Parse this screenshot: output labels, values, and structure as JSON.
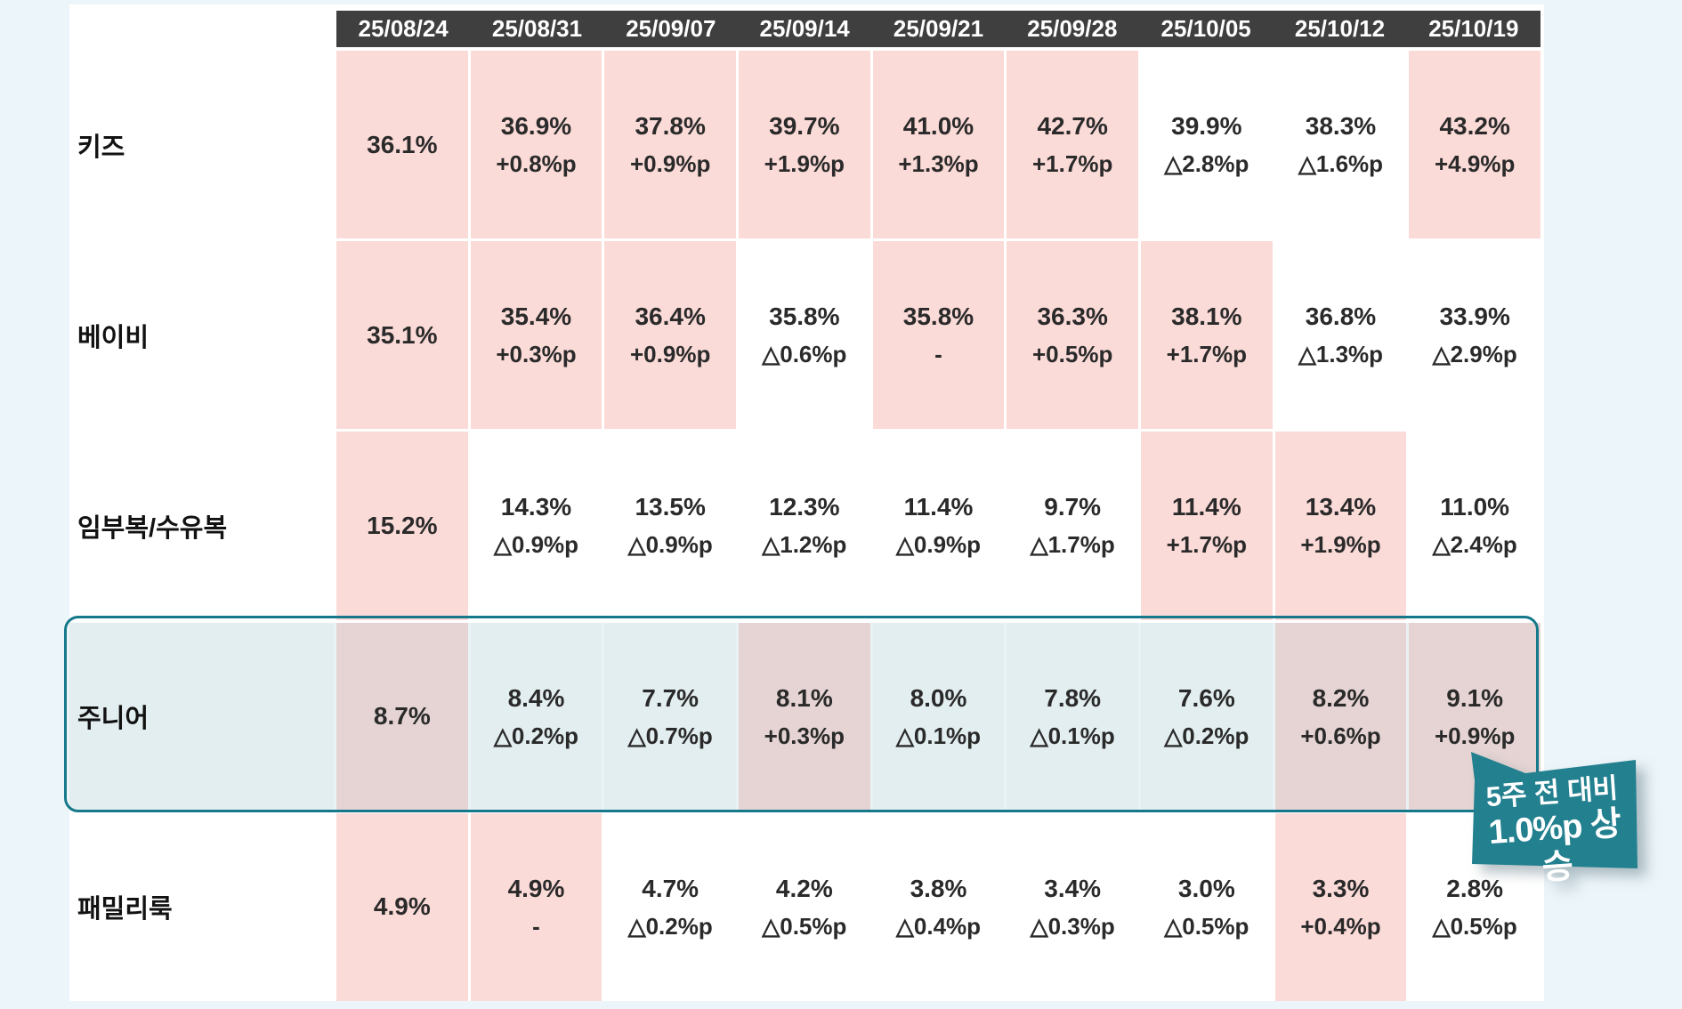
{
  "colors": {
    "page_bg": "#ECF5F9",
    "sheet_bg": "#FFFFFF",
    "header_bg": "#3F3F3F",
    "header_text": "#FFFFFF",
    "cell_pink": "#FBDBD8",
    "junior_blue": "#E3EEF0",
    "junior_mauve": "#E5D4D3",
    "box_border": "#15798B",
    "callout_bg": "#22808F",
    "text": "#2A2A2A"
  },
  "chart_data": {
    "type": "table",
    "columns": [
      "25/08/24",
      "25/08/31",
      "25/09/07",
      "25/09/14",
      "25/09/21",
      "25/09/28",
      "25/10/05",
      "25/10/12",
      "25/10/19"
    ],
    "value_unit": "%",
    "change_unit": "%p",
    "decrease_marker": "△",
    "rows": [
      {
        "label": "키즈",
        "values": [
          "36.1%",
          "36.9%",
          "37.8%",
          "39.7%",
          "41.0%",
          "42.7%",
          "39.9%",
          "38.3%",
          "43.2%"
        ],
        "changes": [
          "",
          "+0.8%p",
          "+0.9%p",
          "+1.9%p",
          "+1.3%p",
          "+1.7%p",
          "△2.8%p",
          "△1.6%p",
          "+4.9%p"
        ],
        "highlight": [
          1,
          1,
          1,
          1,
          1,
          1,
          0,
          0,
          1
        ],
        "emphasized": false
      },
      {
        "label": "베이비",
        "values": [
          "35.1%",
          "35.4%",
          "36.4%",
          "35.8%",
          "35.8%",
          "36.3%",
          "38.1%",
          "36.8%",
          "33.9%"
        ],
        "changes": [
          "",
          "+0.3%p",
          "+0.9%p",
          "△0.6%p",
          "-",
          "+0.5%p",
          "+1.7%p",
          "△1.3%p",
          "△2.9%p"
        ],
        "highlight": [
          1,
          1,
          1,
          0,
          1,
          1,
          1,
          0,
          0
        ],
        "emphasized": false
      },
      {
        "label": "임부복/수유복",
        "values": [
          "15.2%",
          "14.3%",
          "13.5%",
          "12.3%",
          "11.4%",
          "9.7%",
          "11.4%",
          "13.4%",
          "11.0%"
        ],
        "changes": [
          "",
          "△0.9%p",
          "△0.9%p",
          "△1.2%p",
          "△0.9%p",
          "△1.7%p",
          "+1.7%p",
          "+1.9%p",
          "△2.4%p"
        ],
        "highlight": [
          1,
          0,
          0,
          0,
          0,
          0,
          1,
          1,
          0
        ],
        "emphasized": false
      },
      {
        "label": "주니어",
        "values": [
          "8.7%",
          "8.4%",
          "7.7%",
          "8.1%",
          "8.0%",
          "7.8%",
          "7.6%",
          "8.2%",
          "9.1%"
        ],
        "changes": [
          "",
          "△0.2%p",
          "△0.7%p",
          "+0.3%p",
          "△0.1%p",
          "△0.1%p",
          "△0.2%p",
          "+0.6%p",
          "+0.9%p"
        ],
        "highlight": [
          1,
          0,
          0,
          1,
          0,
          0,
          0,
          1,
          1
        ],
        "emphasized": true
      },
      {
        "label": "패밀리룩",
        "values": [
          "4.9%",
          "4.9%",
          "4.7%",
          "4.2%",
          "3.8%",
          "3.4%",
          "3.0%",
          "3.3%",
          "2.8%"
        ],
        "changes": [
          "",
          "-",
          "△0.2%p",
          "△0.5%p",
          "△0.4%p",
          "△0.3%p",
          "△0.5%p",
          "+0.4%p",
          "△0.5%p"
        ],
        "highlight": [
          1,
          1,
          0,
          0,
          0,
          0,
          0,
          1,
          0
        ],
        "emphasized": false
      }
    ]
  },
  "callout": {
    "line1": "5주 전 대비",
    "line2": "1.0%p 상승"
  }
}
